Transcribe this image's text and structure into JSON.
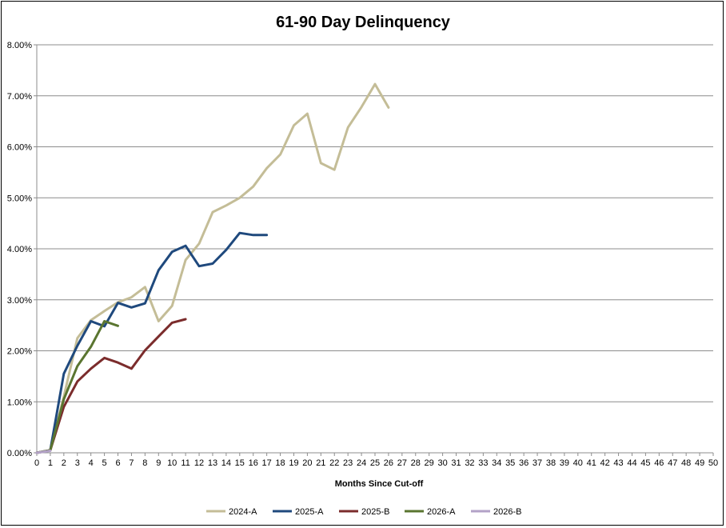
{
  "chart_data": {
    "type": "line",
    "title": "61-90 Day Delinquency",
    "xlabel": "Months Since Cut-off",
    "ylabel": "",
    "xlim": [
      0,
      50
    ],
    "ylim": [
      0,
      8
    ],
    "y_tick_labels": [
      "0.00%",
      "1.00%",
      "2.00%",
      "3.00%",
      "4.00%",
      "5.00%",
      "6.00%",
      "7.00%",
      "8.00%"
    ],
    "x_tick_labels": [
      "0",
      "1",
      "2",
      "3",
      "4",
      "5",
      "6",
      "7",
      "8",
      "9",
      "10",
      "11",
      "12",
      "13",
      "14",
      "15",
      "16",
      "17",
      "18",
      "19",
      "20",
      "21",
      "22",
      "23",
      "24",
      "25",
      "26",
      "27",
      "28",
      "29",
      "30",
      "31",
      "32",
      "33",
      "34",
      "35",
      "36",
      "37",
      "38",
      "39",
      "40",
      "41",
      "42",
      "43",
      "44",
      "45",
      "46",
      "47",
      "48",
      "49",
      "50"
    ],
    "grid": true,
    "legend_position": "bottom",
    "series": [
      {
        "name": "2024-A",
        "color": "#c4bd97",
        "x": [
          0,
          1,
          2,
          3,
          4,
          5,
          6,
          7,
          8,
          9,
          10,
          11,
          12,
          13,
          14,
          15,
          16,
          17,
          18,
          19,
          20,
          21,
          22,
          23,
          24,
          25,
          26
        ],
        "values": [
          0.0,
          0.05,
          1.1,
          2.25,
          2.6,
          2.78,
          2.95,
          3.05,
          3.25,
          2.58,
          2.88,
          3.78,
          4.1,
          4.72,
          4.85,
          5.0,
          5.22,
          5.58,
          5.85,
          6.42,
          6.65,
          5.68,
          5.55,
          6.38,
          6.78,
          7.23,
          6.77
        ]
      },
      {
        "name": "2025-A",
        "color": "#1f497d",
        "x": [
          0,
          1,
          2,
          3,
          4,
          5,
          6,
          7,
          8,
          9,
          10,
          11,
          12,
          13,
          14,
          15,
          16,
          17
        ],
        "values": [
          0.0,
          0.05,
          1.55,
          2.1,
          2.58,
          2.48,
          2.94,
          2.85,
          2.93,
          3.58,
          3.94,
          4.06,
          3.66,
          3.71,
          3.98,
          4.31,
          4.27,
          4.27
        ]
      },
      {
        "name": "2025-B",
        "color": "#7b2c2c",
        "x": [
          0,
          1,
          2,
          3,
          4,
          5,
          6,
          7,
          8,
          9,
          10,
          11
        ],
        "values": [
          0.0,
          0.05,
          0.9,
          1.4,
          1.65,
          1.86,
          1.77,
          1.65,
          2.01,
          2.28,
          2.55,
          2.62
        ]
      },
      {
        "name": "2026-A",
        "color": "#5a7530",
        "x": [
          0,
          1,
          2,
          3,
          4,
          5,
          6
        ],
        "values": [
          0.0,
          0.05,
          1.05,
          1.7,
          2.08,
          2.58,
          2.49
        ]
      },
      {
        "name": "2026-B",
        "color": "#b3a2c7",
        "x": [
          0,
          1
        ],
        "values": [
          0.0,
          0.04
        ]
      }
    ]
  }
}
